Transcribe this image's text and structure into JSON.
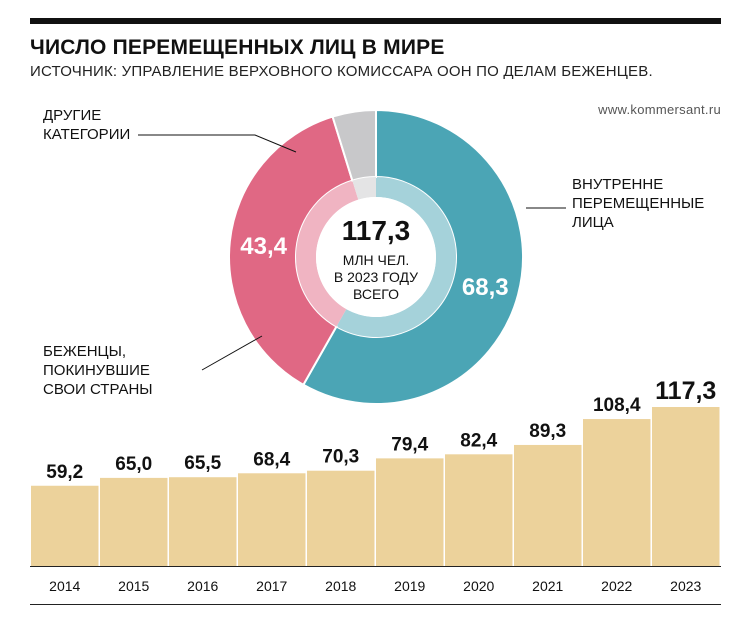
{
  "header": {
    "title": "ЧИСЛО ПЕРЕМЕЩЕННЫХ ЛИЦ В МИРЕ",
    "subtitle": "ИСТОЧНИК: УПРАВЛЕНИЕ ВЕРХОВНОГО КОМИССАРА ООН ПО ДЕЛАМ БЕЖЕНЦЕВ.",
    "site": "www.kommersant.ru"
  },
  "colors": {
    "bar": "#ecd29b",
    "idp": "#4ba5b5",
    "refugees": "#e06884",
    "other": "#c8c8ca"
  },
  "chart_data": [
    {
      "type": "pie",
      "total": 117.3,
      "center_label": "117,3",
      "center_text": [
        "МЛН ЧЕЛ.",
        "В 2023 ГОДУ",
        "ВСЕГО"
      ],
      "series": [
        {
          "name": "ВНУТРЕННЕ ПЕРЕМЕЩЕННЫЕ ЛИЦА",
          "label_lines": [
            "ВНУТРЕННЕ",
            "ПЕРЕМЕЩЕННЫЕ",
            "ЛИЦА"
          ],
          "value": 68.3,
          "value_label": "68,3",
          "color": "#4ba5b5"
        },
        {
          "name": "БЕЖЕНЦЫ, ПОКИНУВШИЕ СВОИ СТРАНЫ",
          "label_lines": [
            "БЕЖЕНЦЫ,",
            "ПОКИНУВШИЕ",
            "СВОИ СТРАНЫ"
          ],
          "value": 43.4,
          "value_label": "43,4",
          "color": "#e06884"
        },
        {
          "name": "ДРУГИЕ КАТЕГОРИИ",
          "label_lines": [
            "ДРУГИЕ",
            "КАТЕГОРИИ"
          ],
          "value": 5.6,
          "value_label": "",
          "color": "#c8c8ca"
        }
      ]
    },
    {
      "type": "bar",
      "categories": [
        "2014",
        "2015",
        "2016",
        "2017",
        "2018",
        "2019",
        "2020",
        "2021",
        "2022",
        "2023"
      ],
      "values": [
        59.2,
        65.0,
        65.5,
        68.4,
        70.3,
        79.4,
        82.4,
        89.3,
        108.4,
        117.3
      ],
      "value_labels": [
        "59,2",
        "65,0",
        "65,5",
        "68,4",
        "70,3",
        "79,4",
        "82,4",
        "89,3",
        "108,4",
        "117,3"
      ],
      "ylim": [
        0,
        117.3
      ]
    }
  ]
}
